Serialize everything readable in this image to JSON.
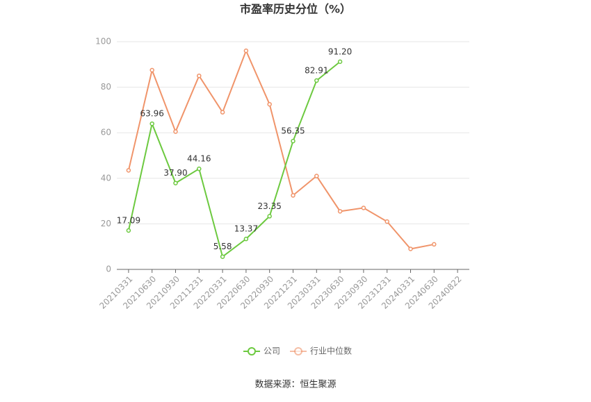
{
  "chart_data": {
    "type": "line",
    "title": "市盈率历史分位（%）",
    "categories": [
      "20210331",
      "20210630",
      "20210930",
      "20211231",
      "20220331",
      "20220630",
      "20220930",
      "20221231",
      "20230331",
      "20230630",
      "20230930",
      "20231231",
      "20240331",
      "20240630",
      "20240822"
    ],
    "series": [
      {
        "name": "公司",
        "color": "#6cc93f",
        "values": [
          17.09,
          63.96,
          37.9,
          44.16,
          5.58,
          13.37,
          23.35,
          56.35,
          82.91,
          91.2,
          null,
          null,
          null,
          null,
          null
        ],
        "value_labels": [
          "17.09",
          "63.96",
          "37.90",
          "44.16",
          "5.58",
          "13.37",
          "23.35",
          "56.35",
          "82.91",
          "91.20",
          null,
          null,
          null,
          null,
          null
        ]
      },
      {
        "name": "行业中位数",
        "color": "#f0946a",
        "values": [
          43.5,
          87.5,
          60.5,
          85,
          69,
          96,
          72.5,
          32.5,
          41,
          25.5,
          27,
          21,
          9,
          11,
          null
        ]
      }
    ],
    "ylim": [
      0,
      100
    ],
    "yticks": [
      0,
      20,
      40,
      60,
      80,
      100
    ],
    "grid": true,
    "legend": "bottom",
    "source": "数据来源：恒生聚源"
  }
}
